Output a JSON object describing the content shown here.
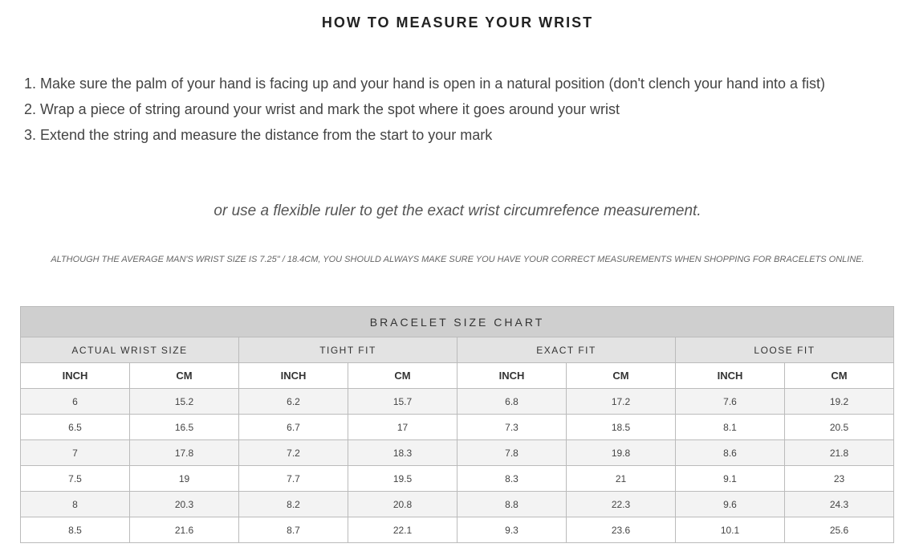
{
  "title": "HOW TO MEASURE YOUR WRIST",
  "steps": [
    "Make sure the palm of your hand is facing up and your hand is open in a natural position (don't clench your hand into a fist)",
    "Wrap a piece of string around your wrist and mark the spot where it goes around your wrist",
    "Extend the string and measure the distance from the start to your mark"
  ],
  "note": "or use a flexible ruler to get the exact wrist circumrefence measurement.",
  "disclaimer": "ALTHOUGH THE AVERAGE MAN'S WRIST SIZE IS 7.25\" / 18.4CM, YOU SHOULD ALWAYS MAKE SURE YOU HAVE YOUR CORRECT MEASUREMENTS WHEN SHOPPING FOR BRACELETS ONLINE.",
  "table": {
    "title": "BRACELET SIZE CHART",
    "groups": [
      "ACTUAL WRIST SIZE",
      "TIGHT FIT",
      "EXACT FIT",
      "LOOSE FIT"
    ],
    "subheaders": [
      "INCH",
      "CM",
      "INCH",
      "CM",
      "INCH",
      "CM",
      "INCH",
      "CM"
    ],
    "rows": [
      [
        6,
        15.2,
        6.2,
        15.7,
        6.8,
        17.2,
        7.6,
        19.2
      ],
      [
        6.5,
        16.5,
        6.7,
        17,
        7.3,
        18.5,
        8.1,
        20.5
      ],
      [
        7,
        17.8,
        7.2,
        18.3,
        7.8,
        19.8,
        8.6,
        21.8
      ],
      [
        7.5,
        19,
        7.7,
        19.5,
        8.3,
        21,
        9.1,
        23
      ],
      [
        8,
        20.3,
        8.2,
        20.8,
        8.8,
        22.3,
        9.6,
        24.3
      ],
      [
        8.5,
        21.6,
        8.7,
        22.1,
        9.3,
        23.6,
        10.1,
        25.6
      ]
    ]
  }
}
